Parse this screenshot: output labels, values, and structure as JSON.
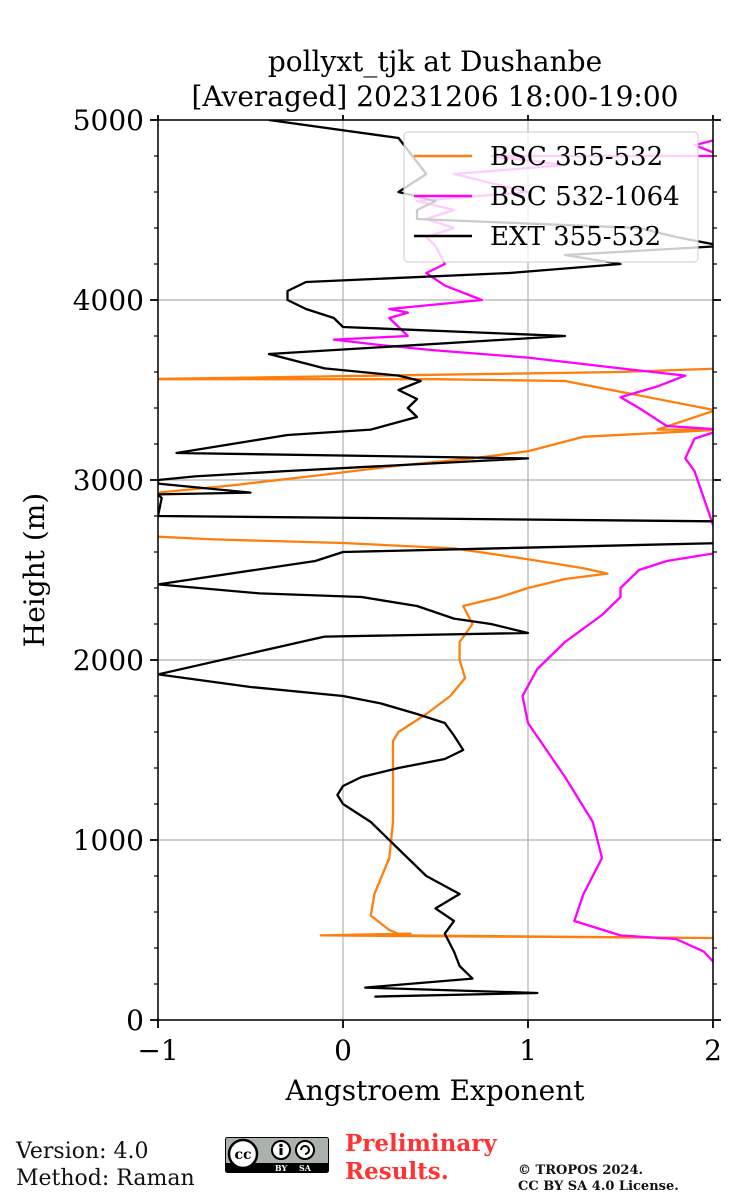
{
  "chart_data": {
    "type": "line",
    "title": "pollyxt_tjk at Dushanbe",
    "subtitle": "[Averaged] 20231206 18:00-19:00",
    "xlabel": "Angstroem Exponent",
    "ylabel": "Height (m)",
    "xlim": [
      -1,
      2
    ],
    "ylim": [
      0,
      5000
    ],
    "xticks": [
      -1,
      0,
      1,
      2
    ],
    "xtick_labels": [
      "−1",
      "0",
      "1",
      "2"
    ],
    "yticks": [
      0,
      1000,
      2000,
      3000,
      4000,
      5000
    ],
    "ytick_labels": [
      "0",
      "1000",
      "2000",
      "3000",
      "4000",
      "5000"
    ],
    "grid": true,
    "legend_position": "top-right",
    "series": [
      {
        "name": "BSC 355-532",
        "color": "#ff7f0e",
        "x": [
          0.37,
          -0.12,
          2.05,
          0.32,
          0.25,
          0.15,
          0.17,
          0.25,
          0.27,
          0.27,
          0.27,
          0.27,
          0.3,
          0.45,
          0.58,
          0.66,
          0.63,
          0.63,
          0.7,
          0.65,
          0.85,
          1.0,
          1.2,
          1.43,
          1.3,
          1.0,
          0.6,
          0.0,
          -0.7,
          -1.1,
          -1.1,
          -0.6,
          -0.1,
          0.3,
          0.7,
          1.0,
          1.3,
          2.05,
          1.7,
          2.05,
          2.05,
          1.2,
          0.5,
          -1.1,
          1.5,
          2.05
        ],
        "y": [
          480,
          470,
          455,
          470,
          500,
          580,
          700,
          900,
          1100,
          1300,
          1500,
          1550,
          1600,
          1700,
          1800,
          1900,
          2000,
          2100,
          2200,
          2300,
          2350,
          2400,
          2450,
          2480,
          2510,
          2560,
          2620,
          2650,
          2670,
          2690,
          2920,
          2970,
          3030,
          3080,
          3120,
          3160,
          3240,
          3280,
          3280,
          3400,
          3380,
          3550,
          3560,
          3560,
          3600,
          3620
        ]
      },
      {
        "name": "BSC 532-1064",
        "color": "#ff00ff",
        "x": [
          2.05,
          1.95,
          1.8,
          1.5,
          1.25,
          1.3,
          1.4,
          1.35,
          1.2,
          1.1,
          1.0,
          0.97,
          1.05,
          1.2,
          1.4,
          1.5,
          1.5,
          1.6,
          1.75,
          2.05,
          1.9,
          1.85,
          1.9,
          2.05,
          1.75,
          1.6,
          1.5,
          1.7,
          1.85,
          1.5,
          1.0,
          0.5,
          0.2,
          -0.05,
          0.35,
          0.3,
          0.25,
          0.35,
          0.25,
          0.75,
          0.55,
          0.45,
          0.55,
          0.5,
          0.45,
          0.6,
          0.45,
          0.6,
          0.4,
          1.0,
          0.8,
          0.6,
          1.2,
          0.8,
          2.05,
          1.9,
          2.05
        ],
        "y": [
          270,
          380,
          450,
          470,
          550,
          700,
          900,
          1100,
          1350,
          1500,
          1650,
          1800,
          1950,
          2100,
          2250,
          2350,
          2400,
          2500,
          2550,
          2600,
          3050,
          3120,
          3230,
          3280,
          3300,
          3400,
          3460,
          3520,
          3580,
          3620,
          3680,
          3720,
          3750,
          3780,
          3800,
          3850,
          3900,
          3930,
          3950,
          4000,
          4080,
          4150,
          4200,
          4300,
          4350,
          4400,
          4450,
          4500,
          4550,
          4600,
          4650,
          4700,
          4750,
          4800,
          4800,
          4860,
          4900
        ]
      },
      {
        "name": "EXT 355-532",
        "color": "#000000",
        "x": [
          0.17,
          1.05,
          0.12,
          0.7,
          0.63,
          0.6,
          0.55,
          0.6,
          0.5,
          0.63,
          0.45,
          0.3,
          0.15,
          0.0,
          -0.03,
          0.0,
          0.1,
          0.3,
          0.55,
          0.65,
          0.6,
          0.55,
          0.4,
          0.2,
          0.0,
          -0.5,
          -1.0,
          -0.1,
          1.0,
          0.8,
          0.6,
          0.4,
          0.1,
          -0.45,
          -1.0,
          -0.15,
          0.0,
          2.05,
          2.05,
          -1.0,
          -0.98,
          -1.0,
          -0.5,
          -1.0,
          -1.0,
          -0.8,
          -0.3,
          1.0,
          -0.9,
          -0.6,
          -0.3,
          0.15,
          0.4,
          0.35,
          0.4,
          0.3,
          0.42,
          0.3,
          -0.1,
          -0.4,
          1.2,
          0.0,
          -0.05,
          -0.2,
          -0.3,
          -0.3,
          -0.2,
          0.9,
          1.5,
          1.2,
          2.05,
          1.8,
          1.6,
          0.4,
          0.4,
          0.5,
          0.3,
          0.45,
          0.3,
          -0.4
        ],
        "y": [
          130,
          150,
          180,
          230,
          300,
          380,
          480,
          550,
          620,
          700,
          800,
          950,
          1100,
          1200,
          1250,
          1300,
          1350,
          1400,
          1450,
          1500,
          1580,
          1650,
          1700,
          1760,
          1800,
          1850,
          1920,
          2130,
          2150,
          2200,
          2230,
          2300,
          2350,
          2370,
          2420,
          2550,
          2600,
          2650,
          2770,
          2800,
          2900,
          2920,
          2930,
          2980,
          3000,
          3020,
          3050,
          3120,
          3150,
          3200,
          3250,
          3280,
          3350,
          3400,
          3450,
          3500,
          3550,
          3580,
          3620,
          3700,
          3800,
          3850,
          3900,
          3950,
          4000,
          4050,
          4100,
          4150,
          4200,
          4250,
          4300,
          4350,
          4400,
          4450,
          4500,
          4550,
          4600,
          4700,
          4900,
          5000
        ]
      }
    ]
  },
  "footer": {
    "version": "Version: 4.0",
    "method": "Method: Raman",
    "preliminary_line1": "Preliminary",
    "preliminary_line2": "Results.",
    "preliminary_color": "#ff3333",
    "copyright_line1": "© TROPOS 2024.",
    "copyright_line2": "CC BY SA 4.0 License.",
    "badge": {
      "icon": "cc-by-sa-icon",
      "cc": "cc",
      "by": "BY",
      "sa": "SA"
    }
  }
}
